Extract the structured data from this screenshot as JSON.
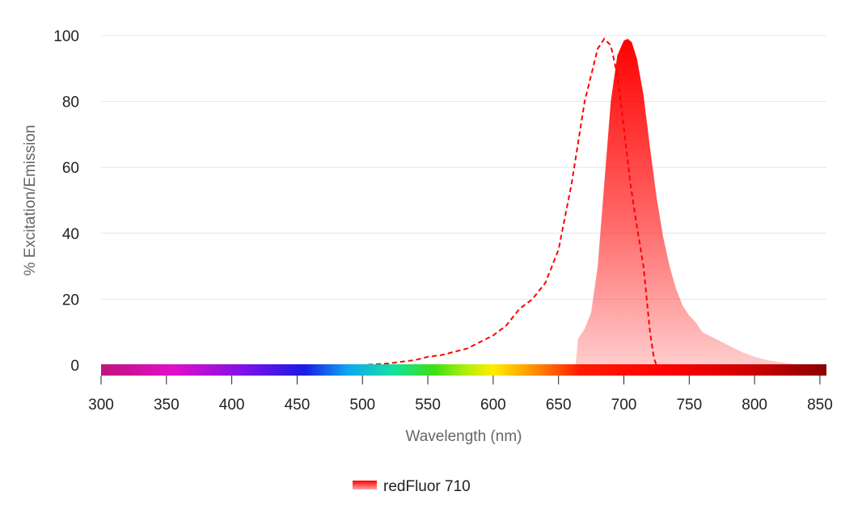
{
  "chart_data": {
    "type": "area",
    "xlabel": "Wavelength (nm)",
    "ylabel": "% Excitation/Emission",
    "xlim": [
      300,
      855
    ],
    "ylim": [
      0,
      100
    ],
    "x_ticks": [
      300,
      350,
      400,
      450,
      500,
      550,
      600,
      650,
      700,
      750,
      800,
      850
    ],
    "y_ticks": [
      0,
      20,
      40,
      60,
      80,
      100
    ],
    "grid": "horizontal",
    "legend": "bottom-center",
    "accent_color": "#ff0000",
    "series": [
      {
        "name": "redFluor 710",
        "role": "excitation",
        "style": "dashed-line",
        "x": [
          300,
          500,
          520,
          530,
          540,
          550,
          560,
          570,
          580,
          590,
          600,
          610,
          620,
          630,
          640,
          650,
          660,
          670,
          680,
          685,
          690,
          695,
          700,
          705,
          710,
          715,
          720,
          723,
          725,
          855
        ],
        "y": [
          0,
          0,
          0.5,
          1,
          1.5,
          2.5,
          3,
          4,
          5,
          7,
          9,
          12,
          17,
          20,
          25,
          35,
          55,
          80,
          96,
          99,
          97,
          88,
          72,
          55,
          42,
          30,
          10,
          2,
          0,
          0
        ]
      },
      {
        "name": "redFluor 710",
        "role": "emission",
        "style": "filled-area",
        "x": [
          663,
          665,
          670,
          675,
          680,
          685,
          690,
          695,
          700,
          703,
          706,
          710,
          715,
          720,
          725,
          730,
          735,
          740,
          745,
          750,
          755,
          760,
          770,
          780,
          790,
          800,
          810,
          820,
          830,
          840
        ],
        "y": [
          0,
          8,
          11,
          16,
          30,
          55,
          80,
          94,
          98.5,
          99,
          98,
          93,
          82,
          66,
          51,
          39,
          30,
          23,
          18,
          15,
          13,
          10,
          8,
          6,
          4,
          2.5,
          1.5,
          0.8,
          0.3,
          0
        ]
      }
    ]
  }
}
